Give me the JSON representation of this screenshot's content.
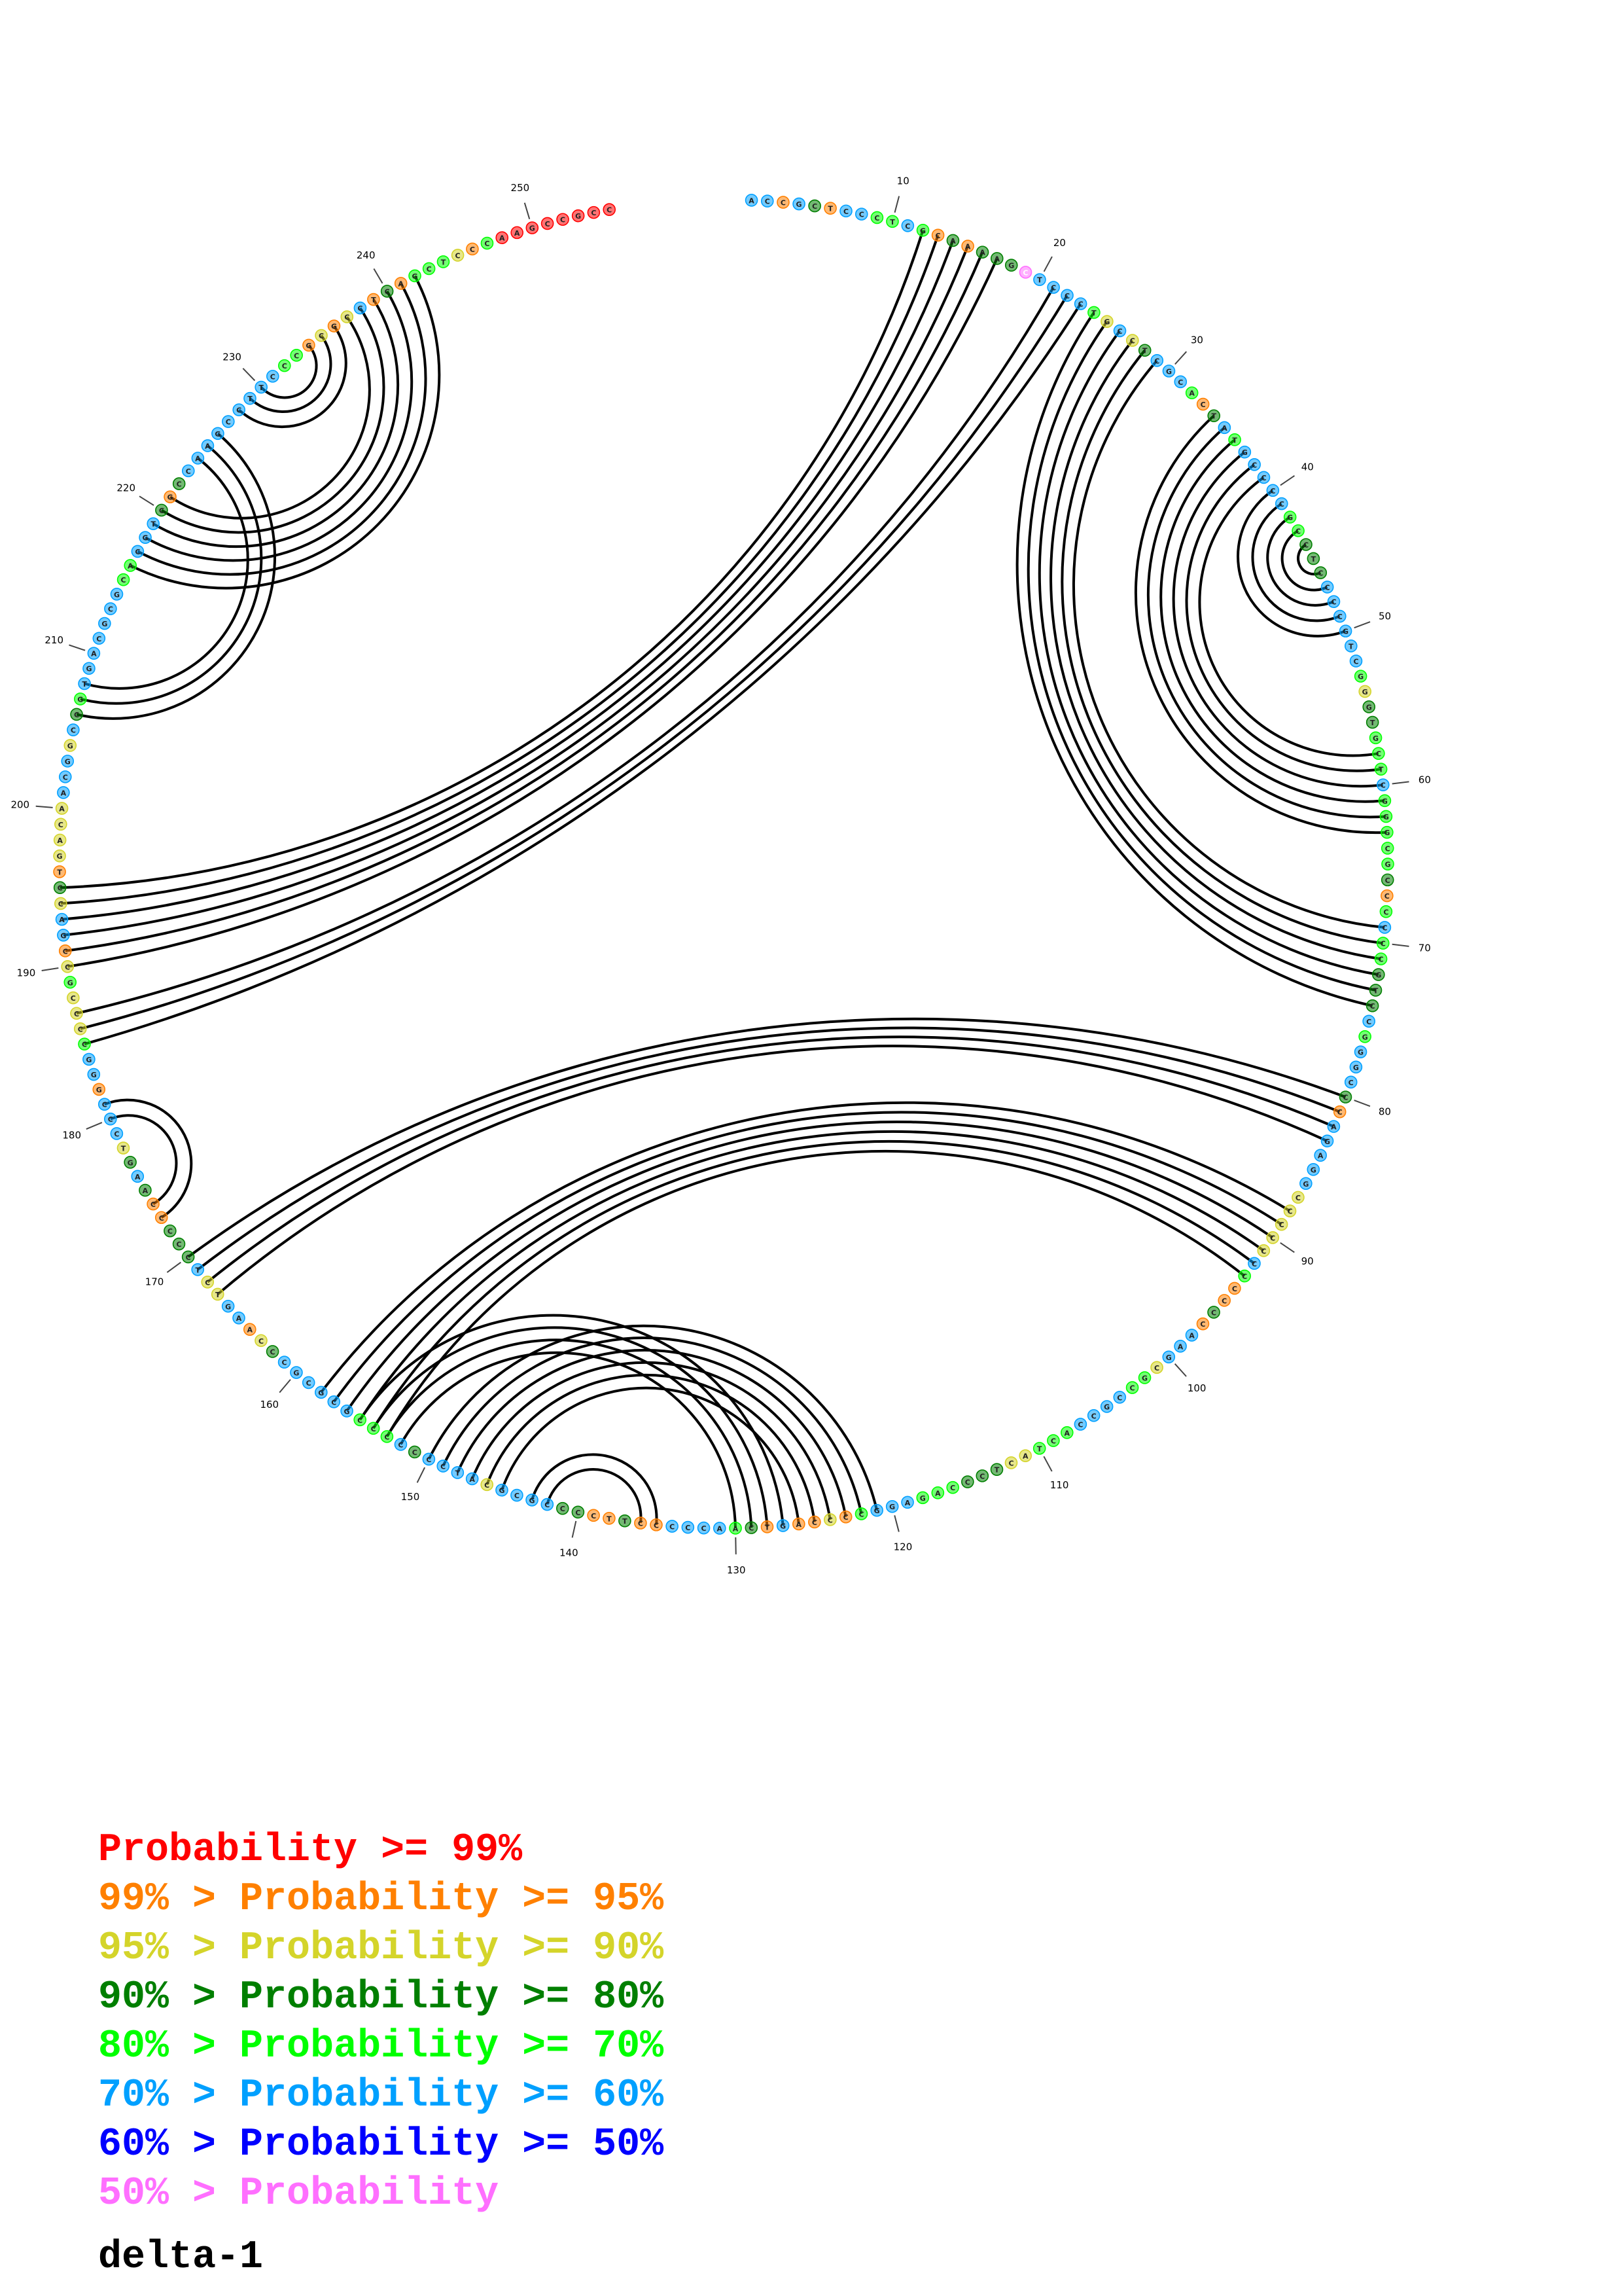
{
  "diagram": {
    "sequence_length": 255,
    "sequence": "ACCGCTCCCTCGCAAAAGCTCCCTGCCTCGCACTATGCCCCGCCTCCCCGTCGGGTGCTCGGGCGCCCCCCGTCCGGGCCCAGAGGCCCCCCCCCCCAAGCGCCGCCACTACTCCCAGAGGCCCCAGTCAACCCCCTTCCCCGCGCATCCCCCCCGCGCGCCCAAGTCTCCCCCAAGTCCCGGGCCCCGCCGACCTGACAACGGCCGTGACGCGCACGTCGCCAAGCCTTCCCGCGCCTCAGCTCCCAAGCCGCC",
    "probability_class": "5515315544541313337555542523555413545555544333555555423344454444431454433354555315555522222541131555244555544422333444555412115134555511311335555255553544455555532155225333113532555155422242155231222255525345555555445553135555555554412125131444214",
    "position_labels": [
      "10",
      "20",
      "30",
      "40",
      "50",
      "60",
      "70",
      "80",
      "90",
      "100",
      "110",
      "120",
      "130",
      "140",
      "150",
      "160",
      "170",
      "180",
      "190",
      "200",
      "210",
      "220",
      "230",
      "240",
      "250"
    ],
    "helices": [
      {
        "i": 12,
        "j": 195,
        "length": 6
      },
      {
        "i": 21,
        "j": 187,
        "length": 3
      },
      {
        "i": 24,
        "j": 74,
        "length": 6
      },
      {
        "i": 34,
        "j": 63,
        "length": 6
      },
      {
        "i": 40,
        "j": 50,
        "length": 5
      },
      {
        "i": 80,
        "j": 170,
        "length": 4
      },
      {
        "i": 88,
        "j": 158,
        "length": 6
      },
      {
        "i": 121,
        "j": 150,
        "length": 6
      },
      {
        "i": 127,
        "j": 155,
        "length": 4
      },
      {
        "i": 135,
        "j": 143,
        "length": 2
      },
      {
        "i": 173,
        "j": 181,
        "length": 2
      },
      {
        "i": 206,
        "j": 226,
        "length": 3
      },
      {
        "i": 216,
        "j": 242,
        "length": 6
      },
      {
        "i": 228,
        "j": 236,
        "length": 3
      }
    ],
    "label_color": "#000000",
    "arc_color": "#000000"
  },
  "legend": {
    "rows": [
      {
        "prefix": "",
        "text": "Probability >= 99%",
        "color": "#ff0000"
      },
      {
        "prefix": "99% > ",
        "text": "Probability >= 95%",
        "color": "#ff8000"
      },
      {
        "prefix": "95% > ",
        "text": "Probability >= 90%",
        "color": "#d4d42a"
      },
      {
        "prefix": "90% > ",
        "text": "Probability >= 80%",
        "color": "#007f00"
      },
      {
        "prefix": "80% > ",
        "text": "Probability >= 70%",
        "color": "#00ff00"
      },
      {
        "prefix": "70% > ",
        "text": "Probability >= 60%",
        "color": "#00a0ff"
      },
      {
        "prefix": "60% > ",
        "text": "Probability >= 50%",
        "color": "#0000ff"
      },
      {
        "prefix": "50% > ",
        "text": "Probability",
        "color": "#ff6fff"
      }
    ]
  },
  "caption": "delta-1"
}
